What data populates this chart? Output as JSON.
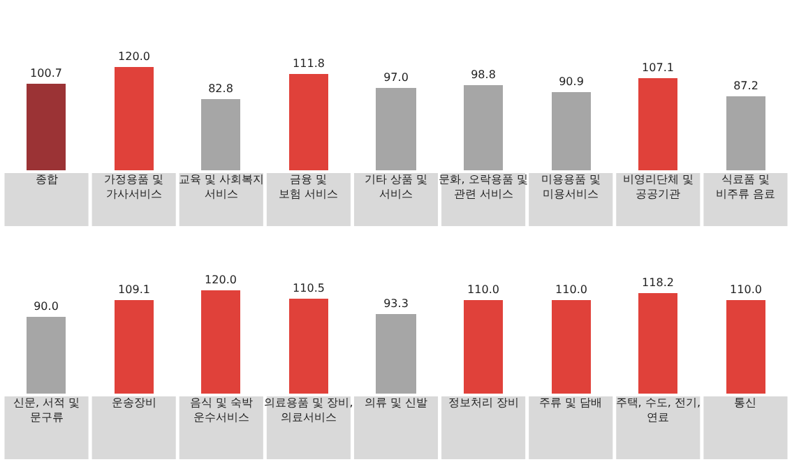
{
  "chart_data": [
    {
      "type": "bar",
      "categories": [
        "종합",
        "가정용품 및\n가사서비스",
        "교육 및 사회복지\n서비스",
        "금융 및\n보험 서비스",
        "기타 상품 및\n서비스",
        "문화, 오락용품 및\n관련 서비스",
        "미용용품 및\n미용서비스",
        "비영리단체 및\n공공기관",
        "식료품 및\n비주류 음료"
      ],
      "values": [
        100.7,
        120.0,
        82.8,
        111.8,
        97.0,
        98.8,
        90.9,
        107.1,
        87.2
      ],
      "value_labels": [
        "100.7",
        "120.0",
        "82.8",
        "111.8",
        "97.0",
        "98.8",
        "90.9",
        "107.1",
        "87.2"
      ],
      "colors": [
        "#9b3335",
        "#e0413a",
        "#a6a6a6",
        "#e0413a",
        "#a6a6a6",
        "#a6a6a6",
        "#a6a6a6",
        "#e0413a",
        "#a6a6a6"
      ]
    },
    {
      "type": "bar",
      "categories": [
        "신문, 서적 및\n문구류",
        "운송장비",
        "음식 및 숙박\n운수서비스",
        "의료용품 및 장비,\n의료서비스",
        "의류 및 신발",
        "정보처리 장비",
        "주류 및 담배",
        "주택, 수도, 전기,\n연료",
        "통신"
      ],
      "values": [
        90.0,
        109.1,
        120.0,
        110.5,
        93.3,
        110.0,
        110.0,
        118.2,
        110.0
      ],
      "value_labels": [
        "90.0",
        "109.1",
        "120.0",
        "110.5",
        "93.3",
        "110.0",
        "110.0",
        "118.2",
        "110.0"
      ],
      "colors": [
        "#a6a6a6",
        "#e0413a",
        "#e0413a",
        "#e0413a",
        "#a6a6a6",
        "#e0413a",
        "#e0413a",
        "#e0413a",
        "#e0413a"
      ]
    }
  ]
}
